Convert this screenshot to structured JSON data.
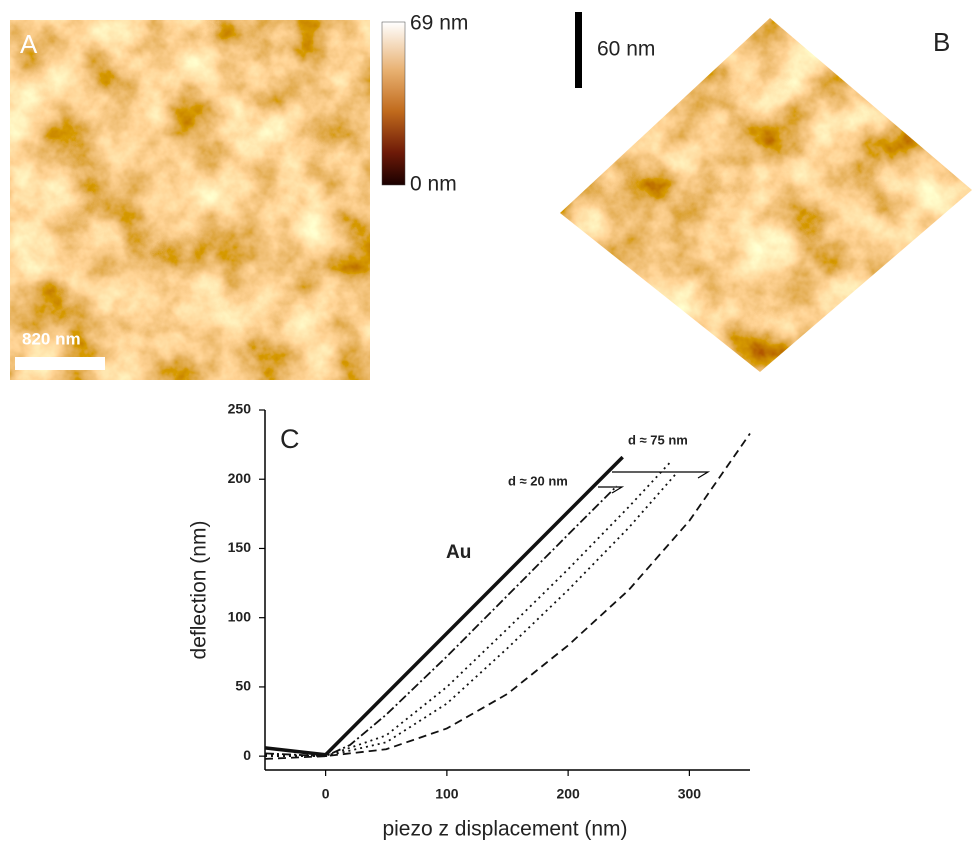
{
  "panel_a": {
    "label": "A",
    "colorbar_max": "69 nm",
    "colorbar_min": "0 nm",
    "scale_bar": "820 nm"
  },
  "panel_b": {
    "label": "B",
    "scale_bar": "60 nm"
  },
  "chart_data": {
    "type": "line",
    "panel_label": "C",
    "x_label": "piezo z displacement (nm)",
    "y_label": "deflection (nm)",
    "xlim": [
      -50,
      350
    ],
    "ylim": [
      -10,
      250
    ],
    "xticks": [
      0,
      100,
      200,
      300
    ],
    "yticks": [
      0,
      50,
      100,
      150,
      200,
      250
    ],
    "annotations": [
      "Au",
      "d ≈ 20 nm",
      "d ≈ 75 nm"
    ],
    "series": [
      {
        "color": "#111111",
        "style": "solid",
        "x": [
          -50,
          0,
          245
        ],
        "values": [
          6,
          1,
          216
        ]
      },
      {
        "color": "#111111",
        "style": "dashdot",
        "x": [
          -50,
          0,
          20,
          50,
          100,
          150,
          200,
          240
        ],
        "values": [
          2,
          0,
          8,
          30,
          72,
          116,
          160,
          195
        ]
      },
      {
        "color": "#111111",
        "style": "dotted",
        "x": [
          -50,
          0,
          50,
          100,
          150,
          200,
          250,
          285
        ],
        "values": [
          1,
          0,
          15,
          50,
          92,
          135,
          180,
          213
        ]
      },
      {
        "color": "#111111",
        "style": "dotted",
        "x": [
          -50,
          0,
          50,
          100,
          150,
          200,
          250,
          290
        ],
        "values": [
          0,
          0,
          10,
          38,
          78,
          120,
          165,
          205
        ]
      },
      {
        "color": "#111111",
        "style": "dashed",
        "x": [
          -50,
          0,
          50,
          100,
          150,
          200,
          250,
          300,
          350
        ],
        "values": [
          -2,
          0,
          5,
          20,
          45,
          80,
          120,
          170,
          233
        ]
      }
    ]
  }
}
